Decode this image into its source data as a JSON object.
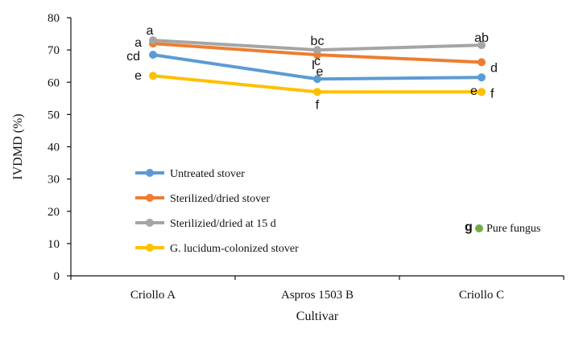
{
  "chart_data": {
    "type": "line",
    "xlabel": "Cultivar",
    "ylabel": "IVDMD (%)",
    "ylim": [
      0,
      80
    ],
    "yticks": [
      0,
      10,
      20,
      30,
      40,
      50,
      60,
      70,
      80
    ],
    "categories": [
      "Criollo A",
      "Aspros 1503 B",
      "Criollo C"
    ],
    "series": [
      {
        "name": "Untreated stover",
        "color": "#5B9BD5",
        "values": [
          68.5,
          61,
          61.5
        ],
        "labels": [
          "cd",
          "e",
          "e"
        ]
      },
      {
        "name": "Sterilized/dried stover",
        "color": "#ED7D31",
        "values": [
          72,
          68.5,
          66.2
        ],
        "labels": [
          "a",
          "c",
          "d"
        ]
      },
      {
        "name": "Sterilizied/dried at 15 d",
        "color": "#A5A5A5",
        "values": [
          73,
          70,
          71.5
        ],
        "labels": [
          "a",
          "bc",
          "ab"
        ]
      },
      {
        "name": "G. lucidum-colonized stover",
        "color": "#FFC000",
        "values": [
          62,
          57,
          57
        ],
        "labels": [
          "e",
          "f",
          "f"
        ]
      }
    ],
    "extra_point": {
      "name": "Pure fungus",
      "label": "g",
      "color": "#70AD47"
    },
    "error_bar_marker": "I",
    "legend": "lower-left",
    "grid": false
  }
}
